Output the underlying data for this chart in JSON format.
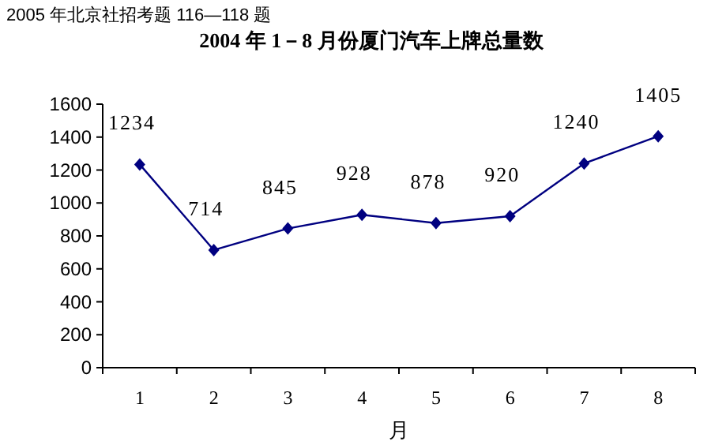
{
  "chart_data": {
    "type": "line",
    "title": "2004 年 1－8 月份厦门汽车上牌总量数",
    "annotations": [
      "2005 年北京社招考题 116—118 题"
    ],
    "xlabel": "月",
    "categories": [
      "1",
      "2",
      "3",
      "4",
      "5",
      "6",
      "7",
      "8"
    ],
    "series": [
      {
        "color": "#000080",
        "values": [
          1234,
          714,
          845,
          928,
          878,
          920,
          1240,
          1405
        ]
      }
    ],
    "ylim": [
      0,
      1600
    ],
    "yticks": [
      0,
      200,
      400,
      600,
      800,
      1000,
      1200,
      1400,
      1600
    ],
    "data_labels": true,
    "marker": "diamond",
    "line_style": "solid",
    "grid": false
  }
}
